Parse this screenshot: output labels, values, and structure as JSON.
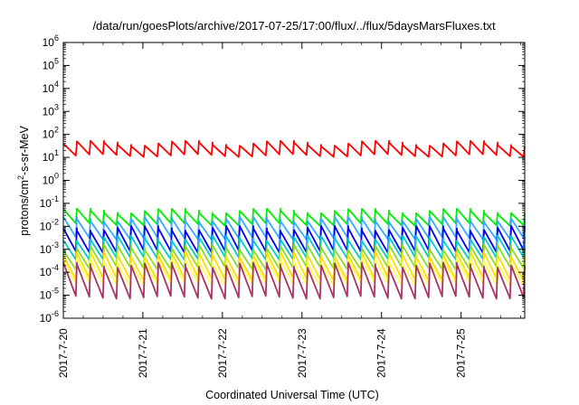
{
  "chart_data": {
    "type": "line",
    "title": "/data/run/goesPlots/archive/2017-07-25/17:00/flux/../flux/5daysMarsFluxes.txt",
    "xlabel": "Coordinated Universal Time (UTC)",
    "ylabel_parts": [
      "protons/cm",
      "2",
      "-s-sr-MeV"
    ],
    "yscale": "log",
    "ylim": [
      1e-06,
      1000000.0
    ],
    "y_ticks": [
      {
        "base": "10",
        "exp": "-6"
      },
      {
        "base": "10",
        "exp": "-5"
      },
      {
        "base": "10",
        "exp": "-4"
      },
      {
        "base": "10",
        "exp": "-3"
      },
      {
        "base": "10",
        "exp": "-2"
      },
      {
        "base": "10",
        "exp": "-1"
      },
      {
        "base": "10",
        "exp": "0"
      },
      {
        "base": "10",
        "exp": "1"
      },
      {
        "base": "10",
        "exp": "2"
      },
      {
        "base": "10",
        "exp": "3"
      },
      {
        "base": "10",
        "exp": "4"
      },
      {
        "base": "10",
        "exp": "5"
      },
      {
        "base": "10",
        "exp": "6"
      }
    ],
    "x_ticks": [
      "2017-7-20",
      "2017-7-21",
      "2017-7-22",
      "2017-7-23",
      "2017-7-24",
      "2017-7-25"
    ],
    "xlim": [
      "2017-07-20T00:00",
      "2017-07-25T19:12"
    ],
    "grid": false,
    "series": [
      {
        "color": "#ff0000",
        "sawtooth": {
          "top": 40,
          "bottom": 12,
          "teeth": 34
        }
      },
      {
        "color": "#00ee00",
        "sawtooth": {
          "top": 0.045,
          "bottom": 0.012,
          "teeth": 34
        }
      },
      {
        "color": "#33aaff",
        "sawtooth": {
          "top": 0.02,
          "bottom": 0.003,
          "teeth": 34
        }
      },
      {
        "color": "#0000ee",
        "sawtooth": {
          "top": 0.008,
          "bottom": 0.0008,
          "teeth": 34
        }
      },
      {
        "color": "#00cccc",
        "sawtooth": {
          "top": 0.003,
          "bottom": 0.0004,
          "teeth": 34
        }
      },
      {
        "color": "#88dd22",
        "sawtooth": {
          "top": 0.0012,
          "bottom": 0.00015,
          "teeth": 34
        }
      },
      {
        "color": "#ffdd00",
        "sawtooth": {
          "top": 0.0006,
          "bottom": 5e-05,
          "teeth": 34
        }
      },
      {
        "color": "#ffff55",
        "sawtooth": {
          "top": 0.0003,
          "bottom": 3e-05,
          "teeth": 34
        }
      },
      {
        "color": "#aa3366",
        "sawtooth": {
          "top": 0.0002,
          "bottom": 8e-06,
          "teeth": 34
        }
      }
    ]
  }
}
